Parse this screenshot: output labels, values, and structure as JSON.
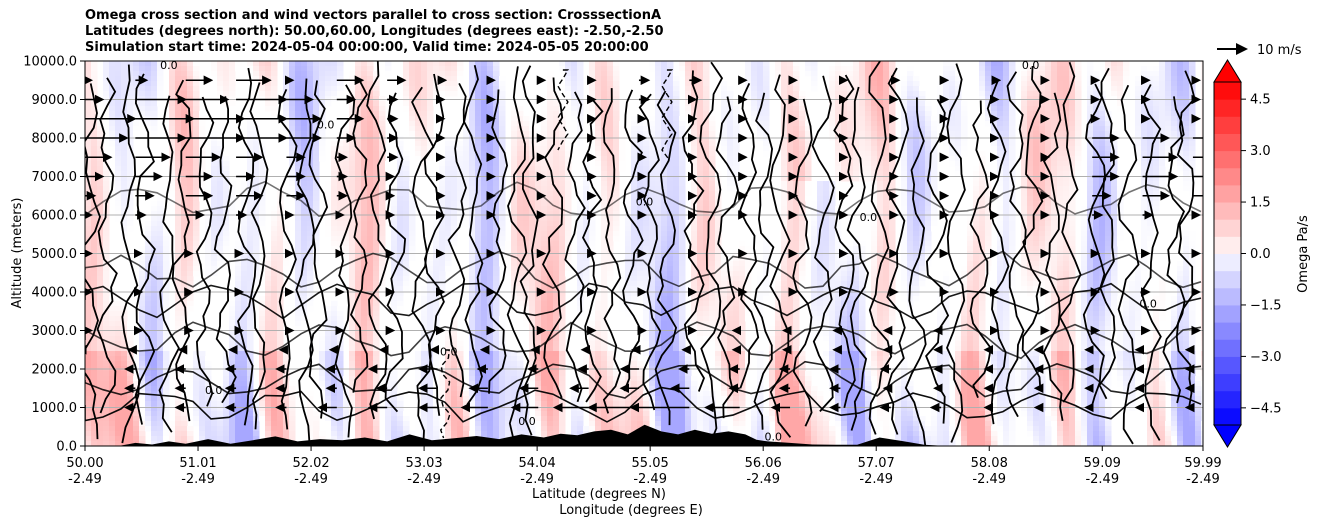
{
  "chart_data": {
    "type": "contour",
    "title_lines": [
      "Omega cross section and wind vectors parallel to cross section: CrosssectionA",
      "Latitudes (degrees north): 50.00,60.00, Longitudes (degrees east): -2.50,-2.50",
      "Simulation start time: 2024-05-04 00:00:00, Valid time: 2024-05-05 20:00:00"
    ],
    "xlabel_line1": "Latitude (degrees N)",
    "xlabel_line2": "Longitude (degrees E)",
    "ylabel": "Altitude (meters)",
    "ylim": [
      0,
      10000
    ],
    "xlim": [
      50.0,
      59.99
    ],
    "grid": true,
    "y_ticks": [
      {
        "value": 0,
        "label": "0.0"
      },
      {
        "value": 1000,
        "label": "1000.0"
      },
      {
        "value": 2000,
        "label": "2000.0"
      },
      {
        "value": 3000,
        "label": "3000.0"
      },
      {
        "value": 4000,
        "label": "4000.0"
      },
      {
        "value": 5000,
        "label": "5000.0"
      },
      {
        "value": 6000,
        "label": "6000.0"
      },
      {
        "value": 7000,
        "label": "7000.0"
      },
      {
        "value": 8000,
        "label": "8000.0"
      },
      {
        "value": 9000,
        "label": "9000.0"
      },
      {
        "value": 10000,
        "label": "10000.0"
      }
    ],
    "x_ticks": [
      {
        "value": 50.0,
        "lat": "50.00",
        "lon": "-2.49"
      },
      {
        "value": 51.01,
        "lat": "51.01",
        "lon": "-2.49"
      },
      {
        "value": 52.02,
        "lat": "52.02",
        "lon": "-2.49"
      },
      {
        "value": 53.03,
        "lat": "53.03",
        "lon": "-2.49"
      },
      {
        "value": 54.04,
        "lat": "54.04",
        "lon": "-2.49"
      },
      {
        "value": 55.05,
        "lat": "55.05",
        "lon": "-2.49"
      },
      {
        "value": 56.06,
        "lat": "56.06",
        "lon": "-2.49"
      },
      {
        "value": 57.07,
        "lat": "57.07",
        "lon": "-2.49"
      },
      {
        "value": 58.08,
        "lat": "58.08",
        "lon": "-2.49"
      },
      {
        "value": 59.09,
        "lat": "59.09",
        "lon": "-2.49"
      },
      {
        "value": 59.99,
        "lat": "59.99",
        "lon": "-2.49"
      }
    ],
    "contour_level_label": "0.0",
    "contour_label_sample_lat": [
      50.75,
      51.15,
      52.15,
      53.25,
      53.95,
      55.0,
      56.15,
      57.0,
      58.45,
      59.5
    ],
    "contour_label_sample_alt": [
      9900,
      1450,
      8350,
      2450,
      650,
      6350,
      250,
      5950,
      9900,
      3700
    ],
    "colorbar": {
      "label": "Omega Pa/s",
      "range": [
        -5,
        5
      ],
      "extend": "both",
      "ticks": [
        {
          "value": 4.5,
          "label": "4.5"
        },
        {
          "value": 3.0,
          "label": "3.0"
        },
        {
          "value": 1.5,
          "label": "1.5"
        },
        {
          "value": 0.0,
          "label": "0.0"
        },
        {
          "value": -1.5,
          "label": "−1.5"
        },
        {
          "value": -3.0,
          "label": "−3.0"
        },
        {
          "value": -4.5,
          "label": "−4.5"
        }
      ],
      "colors": {
        "positive_max": "#ff0000",
        "near_zero": "#ffffff",
        "negative_max": "#0000ff"
      }
    },
    "quiver_key": {
      "label": "10 m/s",
      "value_ms": 10
    },
    "vector_row_altitudes": [
      9500,
      9000,
      8500,
      8000,
      7500,
      7000,
      6500,
      6000,
      5000,
      4000,
      3000,
      2500,
      2000,
      1500,
      1000
    ],
    "vector_col_latitudes": [
      50.0,
      50.45,
      50.9,
      51.35,
      51.8,
      52.25,
      52.7,
      53.15,
      53.6,
      54.05,
      54.5,
      54.95,
      55.4,
      55.85,
      56.3,
      56.75,
      57.2,
      57.65,
      58.1,
      58.55,
      59.0,
      59.45,
      59.9
    ],
    "vector_rows_u_ms": [
      [
        0.3,
        0.6,
        1.5,
        2.0,
        0.3,
        1.5,
        1.0,
        0.4,
        0.3,
        0.3,
        0.3,
        0.5,
        0.6,
        0.3,
        0.3,
        0.3,
        0.4,
        0.3,
        0.4,
        0.3,
        0.3,
        0.3,
        0.3
      ],
      [
        1.0,
        3.0,
        2.5,
        3.0,
        1.5,
        1.0,
        0.5,
        0.3,
        0.3,
        0.3,
        0.3,
        0.5,
        0.3,
        0.3,
        0.3,
        0.3,
        0.3,
        0.3,
        0.3,
        0.3,
        0.3,
        0.3,
        0.3
      ],
      [
        3.0,
        3.5,
        3.5,
        3.0,
        2.0,
        1.5,
        0.5,
        0.3,
        0.3,
        0.3,
        0.3,
        0.3,
        0.3,
        0.3,
        0.3,
        0.3,
        0.3,
        0.3,
        0.3,
        0.3,
        0.3,
        0.3,
        0.3
      ],
      [
        2.5,
        3.0,
        3.5,
        3.0,
        2.0,
        1.0,
        0.5,
        0.3,
        0.3,
        0.3,
        0.3,
        0.3,
        0.3,
        0.3,
        0.3,
        0.3,
        0.3,
        0.3,
        0.3,
        0.3,
        1.5,
        1.5,
        1.5
      ],
      [
        1.5,
        2.0,
        2.0,
        1.5,
        1.0,
        0.5,
        0.5,
        0.3,
        0.3,
        0.3,
        0.3,
        0.3,
        0.3,
        0.3,
        0.3,
        0.3,
        0.3,
        0.3,
        0.3,
        0.3,
        1.5,
        2.0,
        1.5
      ],
      [
        1.0,
        1.5,
        1.5,
        1.0,
        1.0,
        0.5,
        0.3,
        0.3,
        0.3,
        0.3,
        0.3,
        0.3,
        0.3,
        0.3,
        0.3,
        0.3,
        0.3,
        0.3,
        0.3,
        0.3,
        1.5,
        2.0,
        2.0
      ],
      [
        0.5,
        1.0,
        1.5,
        1.5,
        1.0,
        0.5,
        0.3,
        0.3,
        0.3,
        0.3,
        0.3,
        0.3,
        0.3,
        0.3,
        0.3,
        0.3,
        0.3,
        0.3,
        0.3,
        0.3,
        1.0,
        1.5,
        1.0
      ],
      [
        0.3,
        0.5,
        1.0,
        0.5,
        0.3,
        0.3,
        0.3,
        0.3,
        0.3,
        0.3,
        0.3,
        0.3,
        0.3,
        0.3,
        0.3,
        0.3,
        0.3,
        0.3,
        0.3,
        0.3,
        0.5,
        0.5,
        0.3
      ],
      [
        0.3,
        0.3,
        0.3,
        0.3,
        0.3,
        0.3,
        0.3,
        0.3,
        0.3,
        0.3,
        0.3,
        0.3,
        0.3,
        0.3,
        0.3,
        0.3,
        0.3,
        0.3,
        0.3,
        0.3,
        0.3,
        0.3,
        0.3
      ],
      [
        0.3,
        0.3,
        0.3,
        0.3,
        0.3,
        0.3,
        0.3,
        0.3,
        0.3,
        0.3,
        0.3,
        0.3,
        0.3,
        0.3,
        0.3,
        0.3,
        0.3,
        0.3,
        0.3,
        0.3,
        0.3,
        0.3,
        0.3
      ],
      [
        0.3,
        0.3,
        0.3,
        0.3,
        0.3,
        0.3,
        0.3,
        0.3,
        0.3,
        0.3,
        0.3,
        0.3,
        0.3,
        -0.3,
        -0.3,
        -0.3,
        -0.3,
        -0.3,
        0.3,
        0.3,
        0.3,
        0.3,
        0.3
      ],
      [
        -0.3,
        -0.3,
        -0.3,
        -0.3,
        -0.3,
        -0.3,
        -0.3,
        -0.3,
        -0.3,
        -0.3,
        -0.3,
        -0.3,
        -0.3,
        -0.3,
        -0.3,
        -0.3,
        -0.3,
        -0.3,
        -0.3,
        -0.3,
        -0.3,
        -0.3,
        -0.3
      ],
      [
        -0.5,
        -0.5,
        -0.5,
        -0.5,
        -0.5,
        -0.5,
        -1.0,
        -1.0,
        -0.5,
        -0.5,
        -0.5,
        -1.0,
        -0.5,
        -0.5,
        -0.5,
        -0.5,
        -0.5,
        -0.3,
        -0.3,
        -0.3,
        -0.3,
        -0.3,
        -0.3
      ],
      [
        -0.5,
        -0.5,
        -0.5,
        -0.5,
        -0.5,
        -0.5,
        -0.5,
        -1.0,
        -1.0,
        -1.0,
        -1.0,
        -1.0,
        -1.0,
        -0.5,
        -0.5,
        -0.5,
        -0.3,
        -0.3,
        -0.3,
        -0.3,
        -0.3,
        -0.3,
        -0.3
      ],
      [
        -0.5,
        -0.5,
        -0.5,
        -0.5,
        -0.5,
        -1.0,
        -1.0,
        -1.0,
        -1.5,
        -1.5,
        -2.0,
        -3.0,
        -3.5,
        -2.0,
        -1.0,
        -0.5,
        -0.5,
        -0.5,
        -0.3,
        -0.3,
        -0.3,
        -0.3,
        -0.3
      ]
    ],
    "terrain_lat": [
      50.0,
      50.3,
      50.45,
      50.6,
      50.75,
      50.9,
      51.1,
      51.3,
      51.5,
      51.7,
      51.9,
      52.1,
      52.3,
      52.5,
      52.7,
      52.9,
      53.1,
      53.3,
      53.5,
      53.7,
      53.9,
      54.1,
      54.25,
      54.4,
      54.55,
      54.7,
      54.85,
      55.0,
      55.15,
      55.3,
      55.45,
      55.6,
      55.75,
      55.9,
      56.0,
      56.1,
      56.3,
      56.5,
      56.7,
      56.9,
      57.1,
      57.3,
      57.5,
      57.7,
      57.9,
      58.1,
      58.5,
      59.0,
      59.5,
      59.99
    ],
    "terrain_alt": [
      0,
      0,
      80,
      40,
      120,
      60,
      180,
      60,
      150,
      250,
      120,
      180,
      150,
      220,
      120,
      300,
      150,
      200,
      260,
      180,
      300,
      220,
      320,
      280,
      380,
      420,
      300,
      550,
      380,
      300,
      420,
      320,
      380,
      300,
      160,
      120,
      80,
      40,
      30,
      30,
      220,
      130,
      30,
      0,
      0,
      0,
      0,
      0,
      0,
      0
    ]
  }
}
